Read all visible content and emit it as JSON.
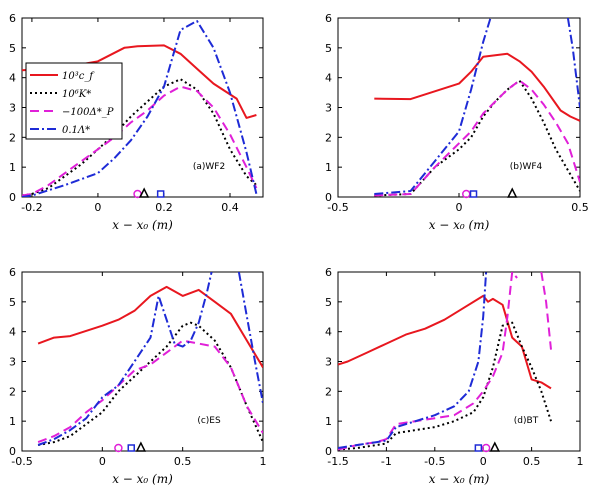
{
  "legend_labels": [
    "10³c_f",
    "10⁶K*",
    "−100Δ*_P",
    "0.1Λ*"
  ],
  "series_styles": [
    {
      "color": "#e8171f",
      "dash": "",
      "width": 2
    },
    {
      "color": "#000000",
      "dash": "2,3",
      "width": 2
    },
    {
      "color": "#e020d8",
      "dash": "9,5",
      "width": 2
    },
    {
      "color": "#1e2bd6",
      "dash": "9,3,2,3",
      "width": 2
    }
  ],
  "marker_colors": {
    "circle": "#e020d8",
    "square": "#1e2bd6",
    "triangle": "#000000"
  },
  "chart_data": [
    {
      "type": "line",
      "annotation": "(a)WF2",
      "xlabel": "x − x₀ (m)",
      "xlim": [
        -0.23,
        0.5
      ],
      "ylim": [
        0,
        6
      ],
      "xticks": [
        {
          "v": -0.2,
          "label": "-0.2"
        },
        {
          "v": 0,
          "label": "0"
        },
        {
          "v": 0.2,
          "label": "0.2"
        },
        {
          "v": 0.4,
          "label": "0.4"
        }
      ],
      "yticks": [
        {
          "v": 0,
          "label": "0"
        },
        {
          "v": 1,
          "label": "1"
        },
        {
          "v": 2,
          "label": "2"
        },
        {
          "v": 3,
          "label": "3"
        },
        {
          "v": 4,
          "label": "4"
        },
        {
          "v": 5,
          "label": "5"
        },
        {
          "v": 6,
          "label": "6"
        }
      ],
      "series": [
        {
          "x": [
            -0.23,
            -0.15,
            -0.05,
            0.0,
            0.08,
            0.12,
            0.2,
            0.25,
            0.3,
            0.35,
            0.42,
            0.45,
            0.48
          ],
          "y": [
            4.25,
            4.3,
            4.45,
            4.55,
            5.0,
            5.05,
            5.08,
            4.8,
            4.3,
            3.8,
            3.3,
            2.65,
            2.75
          ]
        },
        {
          "x": [
            -0.23,
            -0.2,
            -0.15,
            -0.05,
            0.0,
            0.05,
            0.1,
            0.15,
            0.2,
            0.25,
            0.3,
            0.35,
            0.4,
            0.45,
            0.48
          ],
          "y": [
            0.05,
            0.1,
            0.3,
            1.1,
            1.6,
            2.1,
            2.7,
            3.2,
            3.7,
            3.95,
            3.6,
            2.8,
            1.6,
            0.7,
            0.4
          ]
        },
        {
          "x": [
            -0.23,
            -0.2,
            -0.15,
            -0.05,
            0.0,
            0.05,
            0.1,
            0.15,
            0.2,
            0.25,
            0.3,
            0.35,
            0.4,
            0.45,
            0.48
          ],
          "y": [
            0.05,
            0.1,
            0.4,
            1.2,
            1.6,
            2.0,
            2.5,
            2.9,
            3.4,
            3.7,
            3.55,
            3.0,
            2.1,
            1.0,
            0.3
          ]
        },
        {
          "x": [
            -0.23,
            -0.2,
            -0.1,
            0.0,
            0.05,
            0.1,
            0.15,
            0.2,
            0.25,
            0.3,
            0.35,
            0.4,
            0.45,
            0.48
          ],
          "y": [
            0.0,
            0.05,
            0.4,
            0.8,
            1.3,
            1.9,
            2.7,
            3.7,
            5.6,
            5.9,
            5.0,
            3.5,
            1.5,
            0.1
          ]
        }
      ],
      "markers": {
        "circle": 0.12,
        "square": 0.19,
        "triangle": 0.14
      }
    },
    {
      "type": "line",
      "annotation": "(b)WF4",
      "xlabel": "x − x₀ (m)",
      "xlim": [
        -0.5,
        0.5
      ],
      "ylim": [
        0,
        6
      ],
      "xticks": [
        {
          "v": -0.5,
          "label": "-0.5"
        },
        {
          "v": 0,
          "label": "0"
        },
        {
          "v": 0.5,
          "label": "0.5"
        }
      ],
      "yticks": [
        {
          "v": 0,
          "label": "0"
        },
        {
          "v": 1,
          "label": "1"
        },
        {
          "v": 2,
          "label": "2"
        },
        {
          "v": 3,
          "label": "3"
        },
        {
          "v": 4,
          "label": "4"
        },
        {
          "v": 5,
          "label": "5"
        },
        {
          "v": 6,
          "label": "6"
        }
      ],
      "series": [
        {
          "x": [
            -0.35,
            -0.2,
            0.0,
            0.05,
            0.1,
            0.2,
            0.25,
            0.3,
            0.35,
            0.42,
            0.46,
            0.5
          ],
          "y": [
            3.3,
            3.28,
            3.8,
            4.2,
            4.7,
            4.8,
            4.55,
            4.2,
            3.7,
            2.9,
            2.7,
            2.55
          ]
        },
        {
          "x": [
            -0.35,
            -0.2,
            -0.1,
            0.0,
            0.05,
            0.1,
            0.15,
            0.2,
            0.25,
            0.3,
            0.35,
            0.4,
            0.45,
            0.5
          ],
          "y": [
            0.05,
            0.1,
            1.0,
            1.6,
            2.0,
            2.7,
            3.2,
            3.6,
            3.9,
            3.3,
            2.5,
            1.6,
            0.9,
            0.2
          ]
        },
        {
          "x": [
            -0.35,
            -0.2,
            -0.1,
            0.0,
            0.05,
            0.1,
            0.15,
            0.2,
            0.25,
            0.3,
            0.35,
            0.4,
            0.45,
            0.5
          ],
          "y": [
            0.05,
            0.1,
            1.0,
            1.8,
            2.2,
            2.8,
            3.2,
            3.6,
            3.9,
            3.6,
            3.1,
            2.5,
            1.8,
            0.5
          ]
        },
        {
          "x": [
            -0.35,
            -0.2,
            -0.1,
            0.0,
            0.05,
            0.1,
            0.13
          ],
          "y": [
            0.1,
            0.2,
            1.2,
            2.2,
            3.6,
            5.2,
            6.0
          ]
        },
        {
          "x": [
            0.45,
            0.47,
            0.5
          ],
          "y": [
            6.0,
            5.0,
            3.0
          ]
        }
      ],
      "markers": {
        "circle": 0.03,
        "square": 0.06,
        "triangle": 0.22
      }
    },
    {
      "type": "line",
      "annotation": "(c)ES",
      "xlabel": "x − x₀ (m)",
      "xlim": [
        -0.5,
        1
      ],
      "ylim": [
        0,
        6
      ],
      "xticks": [
        {
          "v": -0.5,
          "label": "-0.5"
        },
        {
          "v": 0,
          "label": "0"
        },
        {
          "v": 0.5,
          "label": "0.5"
        },
        {
          "v": 1,
          "label": "1"
        }
      ],
      "yticks": [
        {
          "v": 0,
          "label": "0"
        },
        {
          "v": 1,
          "label": "1"
        },
        {
          "v": 2,
          "label": "2"
        },
        {
          "v": 3,
          "label": "3"
        },
        {
          "v": 4,
          "label": "4"
        },
        {
          "v": 5,
          "label": "5"
        },
        {
          "v": 6,
          "label": "6"
        }
      ],
      "series": [
        {
          "x": [
            -0.4,
            -0.3,
            -0.2,
            0.0,
            0.1,
            0.2,
            0.3,
            0.4,
            0.5,
            0.6,
            0.7,
            0.8,
            0.9,
            1.0
          ],
          "y": [
            3.6,
            3.8,
            3.85,
            4.2,
            4.4,
            4.7,
            5.2,
            5.5,
            5.2,
            5.4,
            5.0,
            4.6,
            3.7,
            2.8
          ]
        },
        {
          "x": [
            -0.4,
            -0.3,
            -0.2,
            -0.1,
            0.0,
            0.1,
            0.2,
            0.3,
            0.4,
            0.5,
            0.55,
            0.6,
            0.7,
            0.8,
            0.9,
            1.0
          ],
          "y": [
            0.2,
            0.3,
            0.5,
            0.9,
            1.3,
            2.0,
            2.5,
            3.0,
            3.5,
            4.2,
            4.3,
            4.2,
            3.7,
            2.8,
            1.5,
            0.3
          ]
        },
        {
          "x": [
            -0.4,
            -0.3,
            -0.2,
            -0.1,
            0.0,
            0.1,
            0.2,
            0.3,
            0.4,
            0.5,
            0.6,
            0.7,
            0.8,
            0.9,
            1.0
          ],
          "y": [
            0.3,
            0.5,
            0.8,
            1.3,
            1.7,
            2.2,
            2.7,
            2.9,
            3.3,
            3.7,
            3.6,
            3.5,
            2.8,
            1.5,
            0.6
          ]
        },
        {
          "x": [
            -0.4,
            -0.3,
            -0.2,
            -0.1,
            0.0,
            0.1,
            0.2,
            0.3,
            0.35,
            0.45,
            0.5,
            0.55,
            0.6,
            0.65,
            0.68
          ],
          "y": [
            0.2,
            0.4,
            0.7,
            1.1,
            1.8,
            2.2,
            3.0,
            3.8,
            5.2,
            3.6,
            3.5,
            3.7,
            4.3,
            5.3,
            6.0
          ]
        },
        {
          "x": [
            0.85,
            0.9,
            0.95,
            1.0
          ],
          "y": [
            6.0,
            4.5,
            3.0,
            1.6
          ]
        }
      ],
      "markers": {
        "circle": 0.1,
        "square": 0.18,
        "triangle": 0.24
      }
    },
    {
      "type": "line",
      "annotation": "(d)BT",
      "xlabel": "x − x₀ (m)",
      "xlim": [
        -1.5,
        1
      ],
      "ylim": [
        0,
        6
      ],
      "xticks": [
        {
          "v": -1.5,
          "label": "-1.5"
        },
        {
          "v": -1,
          "label": "-1"
        },
        {
          "v": -0.5,
          "label": "-0.5"
        },
        {
          "v": 0,
          "label": "0"
        },
        {
          "v": 0.5,
          "label": "0.5"
        },
        {
          "v": 1,
          "label": "1"
        }
      ],
      "yticks": [
        {
          "v": 0,
          "label": "0"
        },
        {
          "v": 1,
          "label": "1"
        },
        {
          "v": 2,
          "label": "2"
        },
        {
          "v": 3,
          "label": "3"
        },
        {
          "v": 4,
          "label": "4"
        },
        {
          "v": 5,
          "label": "5"
        },
        {
          "v": 6,
          "label": "6"
        }
      ],
      "series": [
        {
          "x": [
            -1.5,
            -1.4,
            -1.2,
            -1.0,
            -0.8,
            -0.6,
            -0.4,
            -0.2,
            0.0,
            0.05,
            0.1,
            0.2,
            0.3,
            0.4,
            0.5,
            0.6,
            0.7
          ],
          "y": [
            2.9,
            3.0,
            3.3,
            3.6,
            3.9,
            4.1,
            4.4,
            4.8,
            5.2,
            5.0,
            5.1,
            4.9,
            3.8,
            3.5,
            2.4,
            2.3,
            2.1
          ]
        },
        {
          "x": [
            -1.5,
            -1.3,
            -1.1,
            -1.0,
            -0.9,
            -0.7,
            -0.5,
            -0.3,
            -0.1,
            0.0,
            0.1,
            0.2,
            0.3,
            0.4,
            0.5,
            0.6,
            0.7
          ],
          "y": [
            0.05,
            0.1,
            0.2,
            0.25,
            0.6,
            0.7,
            0.8,
            1.0,
            1.3,
            1.8,
            2.8,
            4.2,
            4.3,
            3.5,
            2.8,
            2.0,
            1.0
          ]
        },
        {
          "x": [
            -1.5,
            -1.3,
            -1.1,
            -1.0,
            -0.9,
            -0.7,
            -0.5,
            -0.3,
            -0.1,
            0.0,
            0.1,
            0.2,
            0.25,
            0.3,
            0.35
          ],
          "y": [
            0.05,
            0.2,
            0.3,
            0.4,
            0.9,
            1.0,
            1.1,
            1.2,
            1.6,
            2.0,
            2.5,
            3.3,
            4.5,
            6.0,
            5.8
          ]
        },
        {
          "x": [
            0.6,
            0.65,
            0.7
          ],
          "y": [
            6.0,
            5.0,
            3.4
          ]
        },
        {
          "x": [
            -1.5,
            -1.3,
            -1.1,
            -1.0,
            -0.9,
            -0.7,
            -0.5,
            -0.3,
            -0.15,
            -0.05,
            0.0,
            0.03
          ],
          "y": [
            0.1,
            0.2,
            0.3,
            0.35,
            0.8,
            1.0,
            1.2,
            1.5,
            2.0,
            3.0,
            4.5,
            6.0
          ]
        }
      ],
      "markers": {
        "circle": 0.03,
        "square": -0.05,
        "triangle": 0.12
      }
    }
  ]
}
